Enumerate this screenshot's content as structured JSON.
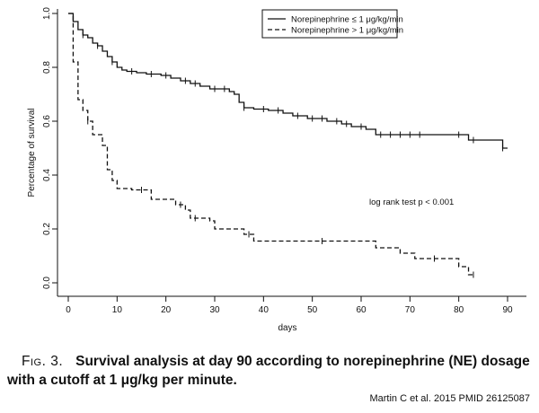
{
  "chart_data": {
    "type": "line",
    "subtype": "kaplan-meier step",
    "title": "",
    "xlabel": "days",
    "ylabel": "Percentage of survival",
    "xlim": [
      0,
      90
    ],
    "ylim": [
      0,
      1.0
    ],
    "xticks": [
      "0",
      "10",
      "20",
      "30",
      "40",
      "50",
      "60",
      "70",
      "80",
      "90"
    ],
    "yticks": [
      "0.0",
      "0.2",
      "0.4",
      "0.6",
      "0.8",
      "1.0"
    ],
    "grid": false,
    "legend_position": "top-right",
    "annotation": "log rank test p < 0.001",
    "series": [
      {
        "name": "Norepinephrine ≤ 1 μg/kg/min",
        "line_style": "solid",
        "x": [
          0,
          1,
          2,
          3,
          4,
          5,
          6,
          7,
          8,
          9,
          10,
          11,
          12,
          14,
          16,
          19,
          21,
          23,
          25,
          27,
          29,
          31,
          33,
          34,
          35,
          36,
          38,
          41,
          44,
          46,
          49,
          53,
          56,
          58,
          61,
          63,
          70,
          80,
          82,
          89,
          90
        ],
        "y": [
          1.0,
          0.97,
          0.94,
          0.92,
          0.91,
          0.89,
          0.88,
          0.86,
          0.84,
          0.82,
          0.8,
          0.79,
          0.785,
          0.78,
          0.775,
          0.77,
          0.76,
          0.75,
          0.74,
          0.73,
          0.72,
          0.72,
          0.71,
          0.7,
          0.67,
          0.65,
          0.645,
          0.64,
          0.63,
          0.62,
          0.61,
          0.6,
          0.59,
          0.58,
          0.57,
          0.55,
          0.55,
          0.55,
          0.53,
          0.5,
          0.5
        ],
        "censored_x": [
          3,
          6,
          9,
          13,
          17,
          20,
          24,
          26,
          30,
          32,
          36,
          40,
          43,
          47,
          50,
          52,
          55,
          57,
          60,
          64,
          66,
          68,
          70,
          72,
          80,
          83,
          89
        ]
      },
      {
        "name": "Norepinephrine > 1 μg/kg/min",
        "line_style": "dashed",
        "x": [
          0,
          1,
          2,
          3,
          4,
          5,
          7,
          8,
          9,
          10,
          13,
          17,
          22,
          24,
          25,
          29,
          30,
          36,
          38,
          63,
          68,
          71,
          80,
          82,
          83
        ],
        "y": [
          1.0,
          0.82,
          0.68,
          0.64,
          0.6,
          0.55,
          0.51,
          0.42,
          0.38,
          0.35,
          0.345,
          0.31,
          0.29,
          0.27,
          0.24,
          0.23,
          0.2,
          0.18,
          0.155,
          0.13,
          0.11,
          0.09,
          0.06,
          0.03,
          0.03
        ],
        "censored_x": [
          4,
          15,
          23,
          26,
          37,
          52,
          75,
          83
        ]
      }
    ]
  },
  "caption": {
    "label": "Fig. 3.",
    "text": "Survival analysis at day 90 according to norepinephrine (NE) dosage with a cutoff at 1 μg/kg per minute."
  },
  "credit": "Martin C et al.  2015  PMID 26125087"
}
